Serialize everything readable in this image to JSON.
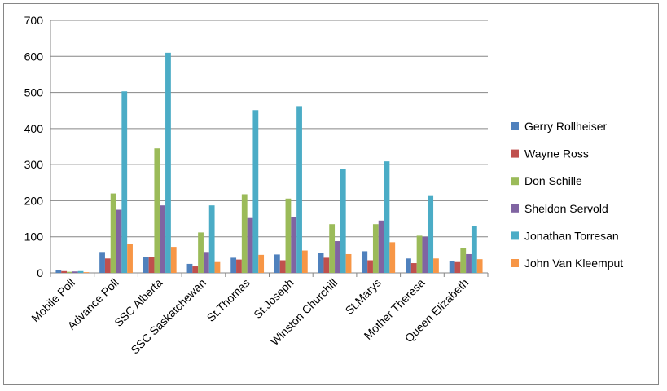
{
  "chart_data": {
    "type": "bar",
    "title": "",
    "xlabel": "",
    "ylabel": "",
    "ylim": [
      0,
      700
    ],
    "yticks": [
      0,
      100,
      200,
      300,
      400,
      500,
      600,
      700
    ],
    "grid": true,
    "legend_position": "right",
    "categories": [
      "Mobile Poll",
      "Advance Poll",
      "SSC Alberta",
      "SSC Saskatchewan",
      "St.Thomas",
      "St.Joseph",
      "Winston Churchill",
      "St.Marys",
      "Mother Theresa",
      "Queen Elizabeth"
    ],
    "series": [
      {
        "name": "Gerry Rollheiser",
        "color": "#4F81BD",
        "values": [
          7,
          58,
          43,
          25,
          42,
          51,
          55,
          60,
          40,
          33
        ]
      },
      {
        "name": "Wayne Ross",
        "color": "#C0504D",
        "values": [
          5,
          40,
          43,
          18,
          37,
          35,
          42,
          35,
          27,
          30
        ]
      },
      {
        "name": "Don Schille",
        "color": "#9BBB59",
        "values": [
          3,
          220,
          345,
          112,
          218,
          206,
          135,
          135,
          103,
          68
        ]
      },
      {
        "name": "Sheldon Servold",
        "color": "#8064A2",
        "values": [
          4,
          175,
          187,
          58,
          152,
          155,
          88,
          145,
          100,
          52
        ]
      },
      {
        "name": "Jonathan Torresan",
        "color": "#4BACC6",
        "values": [
          5,
          503,
          610,
          187,
          451,
          462,
          289,
          309,
          213,
          129
        ]
      },
      {
        "name": "John Van Kleemput",
        "color": "#F79646",
        "values": [
          2,
          80,
          72,
          30,
          50,
          62,
          52,
          85,
          40,
          38
        ]
      }
    ]
  }
}
